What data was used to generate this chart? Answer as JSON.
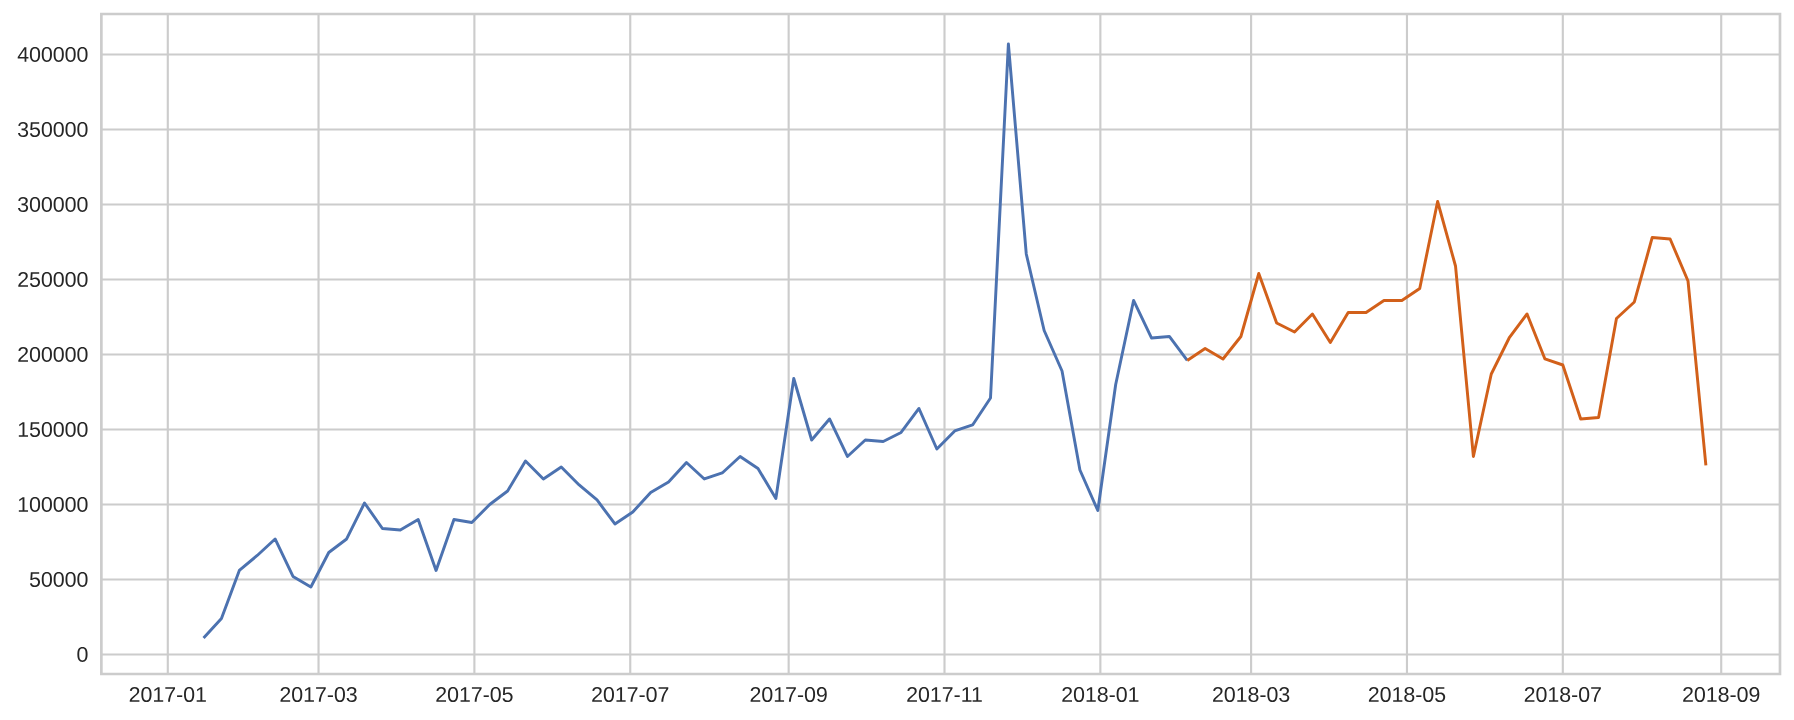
{
  "chart_data": {
    "type": "line",
    "xlim": [
      "2016-12-06",
      "2018-09-24"
    ],
    "ylim": [
      -13000,
      427000
    ],
    "xticks": [
      "2017-01",
      "2017-03",
      "2017-05",
      "2017-07",
      "2017-09",
      "2017-11",
      "2018-01",
      "2018-03",
      "2018-05",
      "2018-07",
      "2018-09"
    ],
    "yticks": [
      0,
      50000,
      100000,
      150000,
      200000,
      250000,
      300000,
      350000,
      400000
    ],
    "grid": true,
    "series": [
      {
        "color": "#4c72b0",
        "x": [
          "2017-01-15",
          "2017-01-22",
          "2017-01-29",
          "2017-02-05",
          "2017-02-12",
          "2017-02-19",
          "2017-02-26",
          "2017-03-05",
          "2017-03-12",
          "2017-03-19",
          "2017-03-26",
          "2017-04-02",
          "2017-04-09",
          "2017-04-16",
          "2017-04-23",
          "2017-04-30",
          "2017-05-07",
          "2017-05-14",
          "2017-05-21",
          "2017-05-28",
          "2017-06-04",
          "2017-06-11",
          "2017-06-18",
          "2017-06-25",
          "2017-07-02",
          "2017-07-09",
          "2017-07-16",
          "2017-07-23",
          "2017-07-30",
          "2017-08-06",
          "2017-08-13",
          "2017-08-20",
          "2017-08-27",
          "2017-09-03",
          "2017-09-10",
          "2017-09-17",
          "2017-09-24",
          "2017-10-01",
          "2017-10-08",
          "2017-10-15",
          "2017-10-22",
          "2017-10-29",
          "2017-11-05",
          "2017-11-12",
          "2017-11-19",
          "2017-11-26",
          "2017-12-03",
          "2017-12-10",
          "2017-12-17",
          "2017-12-24",
          "2017-12-31",
          "2018-01-07",
          "2018-01-14",
          "2018-01-21",
          "2018-01-28",
          "2018-02-04"
        ],
        "values": [
          11000,
          24000,
          56000,
          66000,
          77000,
          52000,
          45000,
          68000,
          77000,
          101000,
          84000,
          83000,
          90000,
          56000,
          90000,
          88000,
          100000,
          109000,
          129000,
          117000,
          125000,
          113000,
          103000,
          87000,
          95000,
          108000,
          115000,
          128000,
          117000,
          121000,
          132000,
          124000,
          104000,
          184000,
          143000,
          157000,
          132000,
          143000,
          142000,
          148000,
          164000,
          137000,
          149000,
          153000,
          171000,
          407000,
          267000,
          216000,
          189000,
          123000,
          96000,
          180000,
          236000,
          211000,
          212000,
          196000
        ]
      },
      {
        "color": "#d2601a",
        "x": [
          "2018-02-04",
          "2018-02-11",
          "2018-02-18",
          "2018-02-25",
          "2018-03-04",
          "2018-03-11",
          "2018-03-18",
          "2018-03-25",
          "2018-04-01",
          "2018-04-08",
          "2018-04-15",
          "2018-04-22",
          "2018-04-29",
          "2018-05-06",
          "2018-05-13",
          "2018-05-20",
          "2018-05-27",
          "2018-06-03",
          "2018-06-10",
          "2018-06-17",
          "2018-06-24",
          "2018-07-01",
          "2018-07-08",
          "2018-07-15",
          "2018-07-22",
          "2018-07-29",
          "2018-08-05",
          "2018-08-12",
          "2018-08-19",
          "2018-08-26"
        ],
        "values": [
          196000,
          204000,
          197000,
          212000,
          254000,
          221000,
          215000,
          227000,
          208000,
          228000,
          228000,
          236000,
          236000,
          244000,
          302000,
          259000,
          132000,
          187000,
          211000,
          227000,
          197000,
          193000,
          157000,
          158000,
          224000,
          235000,
          278000,
          277000,
          249000,
          126000
        ]
      }
    ]
  }
}
